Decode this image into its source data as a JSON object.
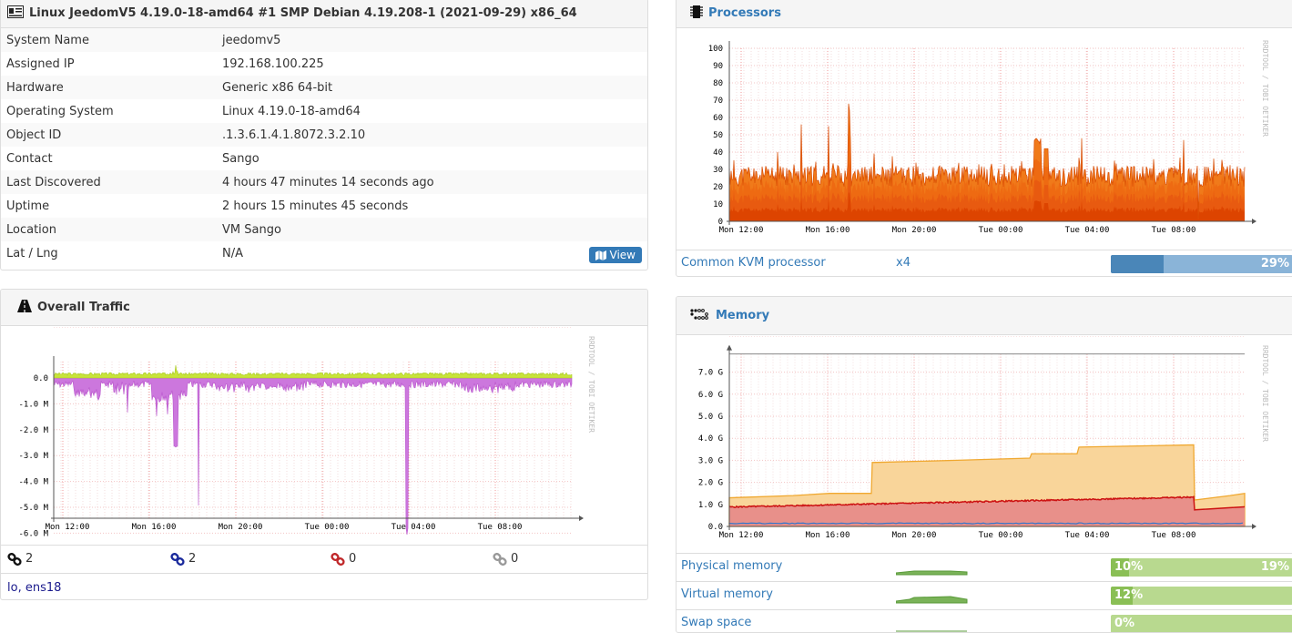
{
  "device": {
    "title": "Linux JeedomV5 4.19.0-18-amd64 #1 SMP Debian 4.19.208-1 (2021-09-29) x86_64",
    "rows": [
      {
        "key": "System Name",
        "value": "jeedomv5"
      },
      {
        "key": "Assigned IP",
        "value": "192.168.100.225"
      },
      {
        "key": "Hardware",
        "value": "Generic x86 64-bit"
      },
      {
        "key": "Operating System",
        "value": "Linux 4.19.0-18-amd64"
      },
      {
        "key": "Object ID",
        "value": ".1.3.6.1.4.1.8072.3.2.10"
      },
      {
        "key": "Contact",
        "value": "Sango"
      },
      {
        "key": "Last Discovered",
        "value": "4 hours 47 minutes 14 seconds ago"
      },
      {
        "key": "Uptime",
        "value": "2 hours 15 minutes 45 seconds"
      },
      {
        "key": "Location",
        "value": "VM Sango"
      },
      {
        "key": "Lat / Lng",
        "value": "N/A"
      }
    ],
    "view_button": "View"
  },
  "traffic": {
    "title": "Overall Traffic",
    "y_ticks": [
      "0.0",
      "-1.0 M",
      "-2.0 M",
      "-3.0 M",
      "-4.0 M",
      "-5.0 M",
      "-6.0 M"
    ],
    "x_ticks": [
      "Mon 12:00",
      "Mon 16:00",
      "Mon 20:00",
      "Tue 00:00",
      "Tue 04:00",
      "Tue 08:00"
    ],
    "side_label": "RRDTOOL / TOBI OETIKER",
    "link_counts": [
      "2",
      "2",
      "0",
      "0"
    ],
    "interfaces": "lo, ens18",
    "colors": {
      "in": "#c0e020",
      "out": "#cc77dd"
    }
  },
  "processors": {
    "title": "Processors",
    "y_ticks": [
      "100",
      "90",
      "80",
      "70",
      "60",
      "50",
      "40",
      "30",
      "20",
      "10",
      "0"
    ],
    "x_ticks": [
      "Mon 12:00",
      "Mon 16:00",
      "Mon 20:00",
      "Tue 00:00",
      "Tue 04:00",
      "Tue 08:00"
    ],
    "side_label": "RRDTOOL / TOBI OETIKER",
    "cpu_name": "Common KVM processor",
    "cpu_count": "x4",
    "usage_label": "29%",
    "usage_fraction": 0.29
  },
  "memory": {
    "title": "Memory",
    "y_ticks": [
      "7.0 G",
      "6.0 G",
      "5.0 G",
      "4.0 G",
      "3.0 G",
      "2.0 G",
      "1.0 G",
      "0.0"
    ],
    "x_ticks": [
      "Mon 12:00",
      "Mon 16:00",
      "Mon 20:00",
      "Tue 00:00",
      "Tue 04:00",
      "Tue 08:00"
    ],
    "side_label": "RRDTOOL / TOBI OETIKER",
    "rows": [
      {
        "name": "Physical memory",
        "used": "10%",
        "other": "19%",
        "fraction": 0.1
      },
      {
        "name": "Virtual memory",
        "used": "12%",
        "other": "",
        "fraction": 0.12
      },
      {
        "name": "Swap space",
        "used": "0%",
        "other": "",
        "fraction": 0.0
      }
    ]
  }
}
